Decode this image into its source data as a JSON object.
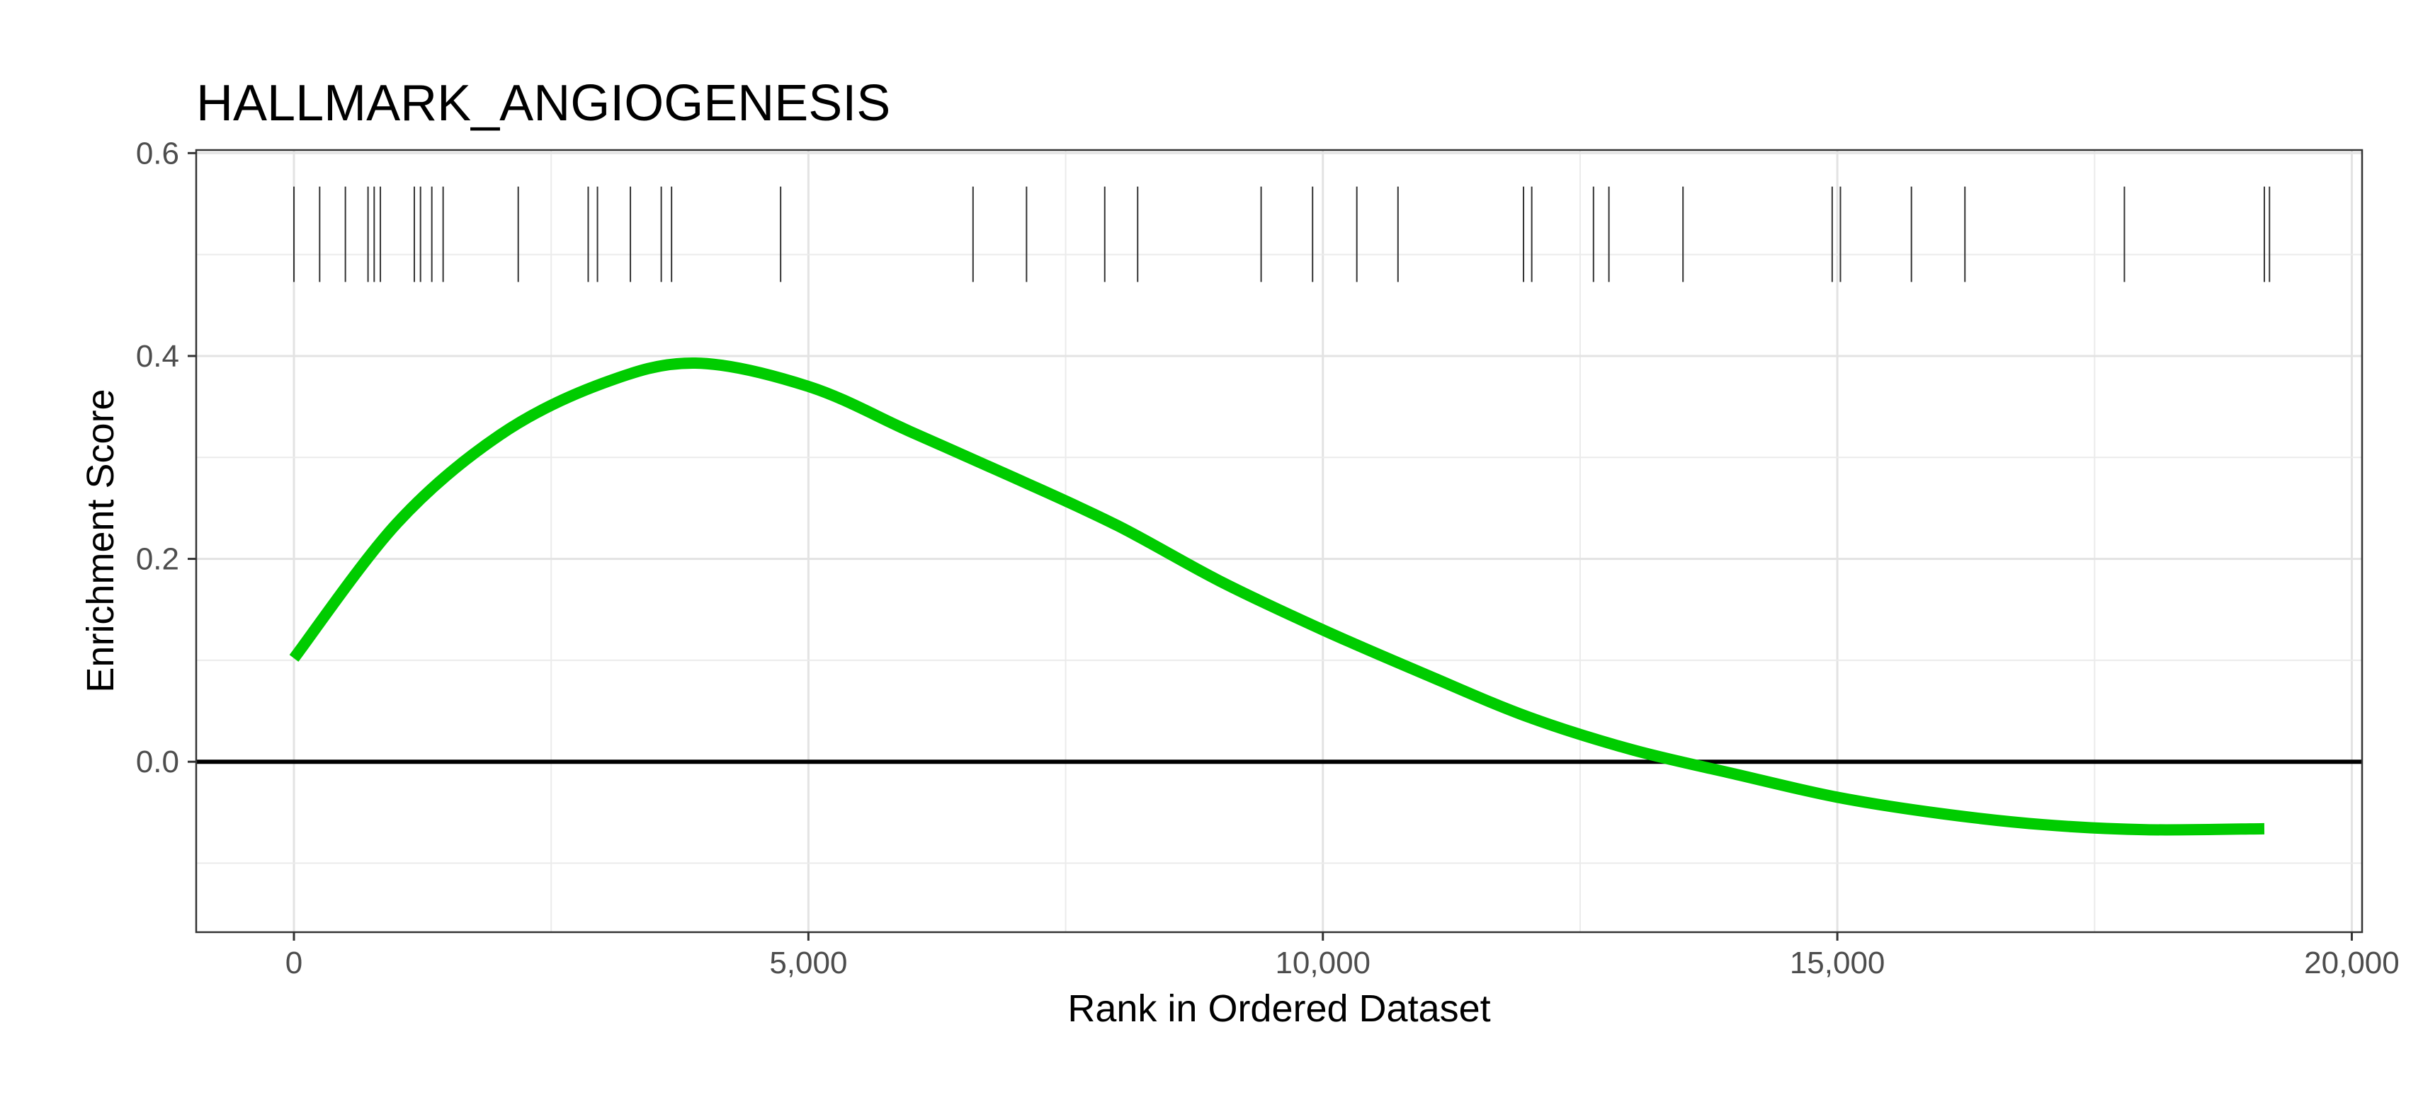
{
  "chart_data": {
    "type": "line",
    "title": "HALLMARK_ANGIOGENESIS",
    "xlabel": "Rank in Ordered Dataset",
    "ylabel": "Enrichment Score",
    "xlim": [
      -950,
      20100
    ],
    "ylim": [
      -0.168,
      0.603
    ],
    "xticks": [
      0,
      5000,
      10000,
      15000,
      20000
    ],
    "xtick_labels": [
      "0",
      "5,000",
      "10,000",
      "15,000",
      "20,000"
    ],
    "yticks": [
      0.0,
      0.2,
      0.4,
      0.6
    ],
    "ytick_labels": [
      "0.0",
      "0.2",
      "0.4",
      "0.6"
    ],
    "grid": true,
    "zero_line": 0.0,
    "series": [
      {
        "color": "#00CC00",
        "x": [
          0,
          1000,
          2000,
          3000,
          3900,
          5000,
          6000,
          7000,
          8000,
          9000,
          10000,
          11000,
          12000,
          13000,
          14000,
          15000,
          16000,
          17000,
          18000,
          19150
        ],
        "values": [
          0.102,
          0.235,
          0.322,
          0.373,
          0.393,
          0.37,
          0.325,
          0.28,
          0.233,
          0.178,
          0.13,
          0.086,
          0.044,
          0.012,
          -0.012,
          -0.035,
          -0.051,
          -0.062,
          -0.067,
          -0.066
        ]
      }
    ],
    "gene_hits": {
      "color": "#333333",
      "y_range": [
        0.473,
        0.567
      ],
      "positions": [
        0,
        250,
        500,
        720,
        780,
        840,
        1170,
        1230,
        1340,
        1450,
        2180,
        2860,
        2950,
        3270,
        3570,
        3670,
        4730,
        6600,
        7120,
        7880,
        8200,
        9400,
        9900,
        10330,
        10730,
        11950,
        12030,
        12630,
        12780,
        13500,
        14950,
        15030,
        15720,
        16240,
        17790,
        19150,
        19200
      ]
    }
  }
}
